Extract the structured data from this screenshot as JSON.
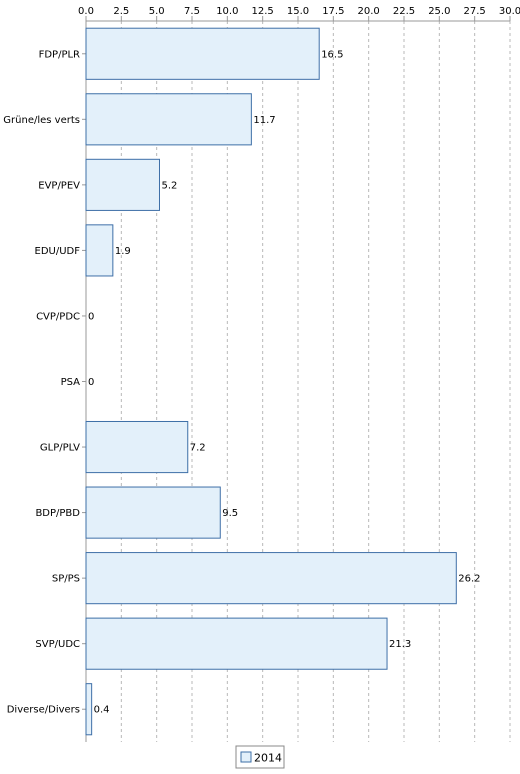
{
  "chart_data": {
    "type": "bar",
    "orientation": "horizontal",
    "categories": [
      "FDP/PLR",
      "Grüne/les verts",
      "EVP/PEV",
      "EDU/UDF",
      "CVP/PDC",
      "PSA",
      "GLP/PLV",
      "BDP/PBD",
      "SP/PS",
      "SVP/UDC",
      "Diverse/Divers"
    ],
    "series": [
      {
        "name": "2014",
        "values": [
          16.5,
          11.7,
          5.2,
          1.9,
          0,
          0,
          7.2,
          9.5,
          26.2,
          21.3,
          0.4
        ]
      }
    ],
    "data_labels": [
      "16.5",
      "11.7",
      "5.2",
      "1.9",
      "0",
      "0",
      "7.2",
      "9.5",
      "26.2",
      "21.3",
      "0.4"
    ],
    "xlim": [
      0,
      30
    ],
    "x_ticks": [
      "0.0",
      "2.5",
      "5.0",
      "7.5",
      "10.0",
      "12.5",
      "15.0",
      "17.5",
      "20.0",
      "22.5",
      "25.0",
      "27.5",
      "30.0"
    ],
    "x_axis_position": "top",
    "grid": "vertical dashed",
    "legend_position": "bottom-center",
    "colors": {
      "bar_fill": "#e3f0fa",
      "bar_stroke": "#3e6fa7",
      "grid": "#b8b8b8",
      "axis": "#999999",
      "text": "#000000"
    }
  }
}
